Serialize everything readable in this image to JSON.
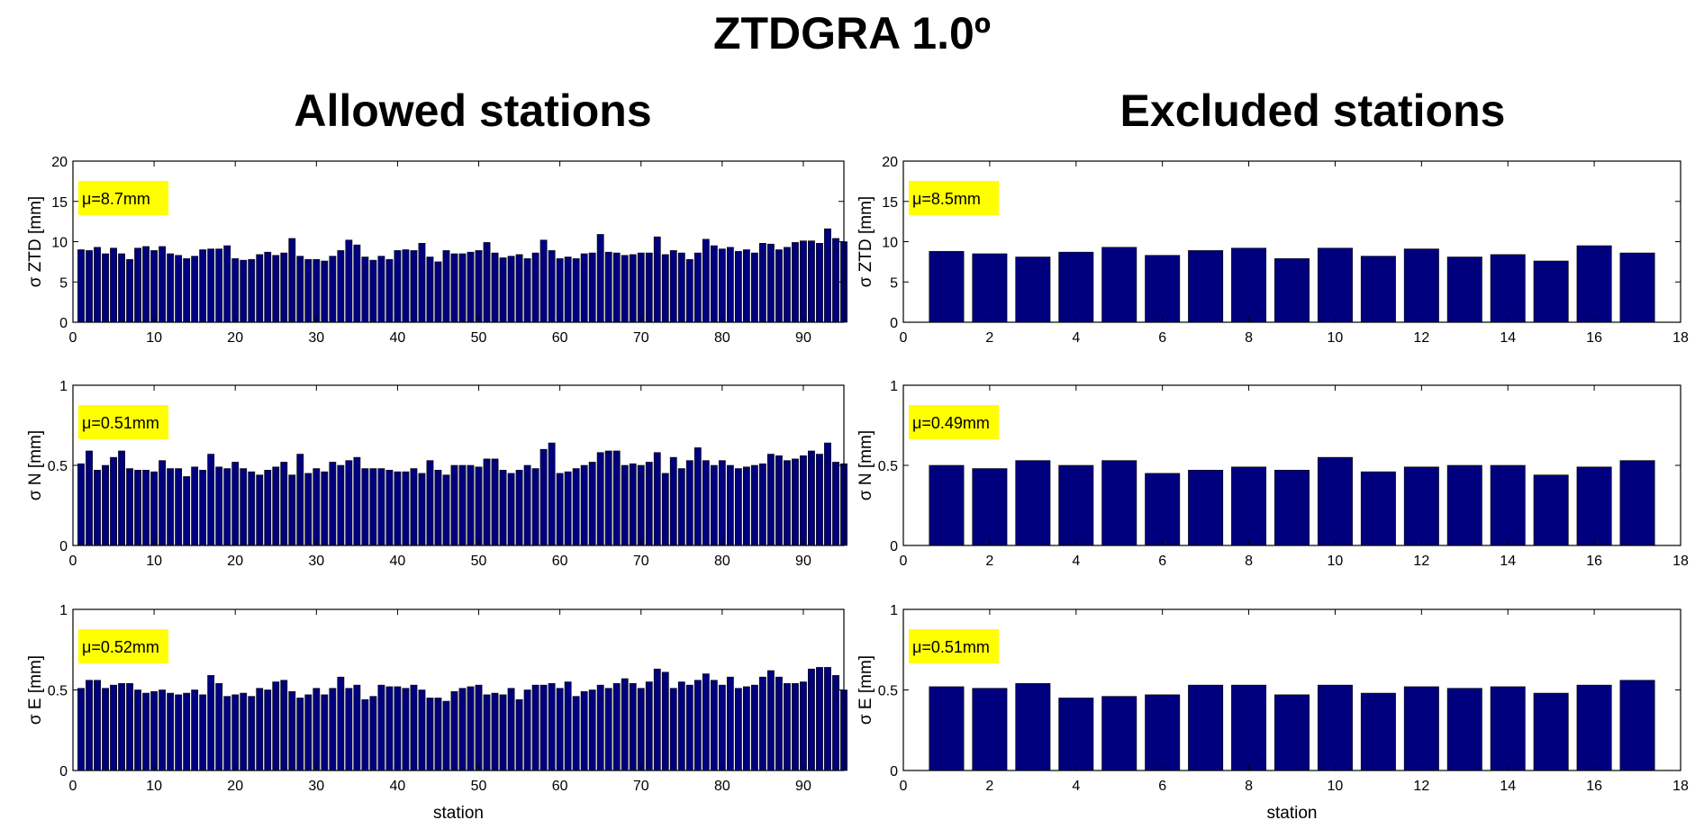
{
  "figure_title": "ZTDGRA 1.0º",
  "column_titles": {
    "left": "Allowed stations",
    "right": "Excluded stations"
  },
  "colors": {
    "bar": "#00007e",
    "bar_edge": "#000000",
    "mean_box": "#ffff00"
  },
  "chart_data": [
    {
      "id": "allowed-ztd",
      "type": "bar",
      "xlabel": "",
      "ylabel": "σ ZTD [mm]",
      "mean_label": "μ=8.7mm",
      "xlim": [
        0,
        95
      ],
      "ylim": [
        0,
        20
      ],
      "xticks": [
        0,
        10,
        20,
        30,
        40,
        50,
        60,
        70,
        80,
        90
      ],
      "yticks": [
        0,
        5,
        10,
        15,
        20
      ],
      "x": [
        1,
        2,
        3,
        4,
        5,
        6,
        7,
        8,
        9,
        10,
        11,
        12,
        13,
        14,
        15,
        16,
        17,
        18,
        19,
        20,
        21,
        22,
        23,
        24,
        25,
        26,
        27,
        28,
        29,
        30,
        31,
        32,
        33,
        34,
        35,
        36,
        37,
        38,
        39,
        40,
        41,
        42,
        43,
        44,
        45,
        46,
        47,
        48,
        49,
        50,
        51,
        52,
        53,
        54,
        55,
        56,
        57,
        58,
        59,
        60,
        61,
        62,
        63,
        64,
        65,
        66,
        67,
        68,
        69,
        70,
        71,
        72,
        73,
        74,
        75,
        76,
        77,
        78,
        79,
        80,
        81,
        82,
        83,
        84,
        85,
        86,
        87,
        88,
        89,
        90,
        91,
        92,
        93,
        94,
        95
      ],
      "values": [
        9.0,
        8.9,
        9.3,
        8.5,
        9.2,
        8.5,
        7.8,
        9.2,
        9.4,
        8.9,
        9.4,
        8.5,
        8.3,
        7.9,
        8.2,
        9.0,
        9.1,
        9.1,
        9.5,
        7.9,
        7.7,
        7.8,
        8.4,
        8.7,
        8.3,
        8.6,
        10.4,
        8.2,
        7.8,
        7.8,
        7.6,
        8.2,
        8.9,
        10.2,
        9.6,
        8.1,
        7.7,
        8.2,
        7.8,
        8.9,
        9.0,
        8.9,
        9.8,
        8.1,
        7.5,
        8.9,
        8.5,
        8.5,
        8.7,
        8.9,
        9.9,
        8.6,
        8.0,
        8.2,
        8.4,
        7.9,
        8.6,
        10.2,
        8.9,
        7.9,
        8.1,
        7.9,
        8.5,
        8.6,
        10.9,
        8.7,
        8.6,
        8.3,
        8.4,
        8.6,
        8.6,
        10.6,
        8.4,
        8.9,
        8.6,
        7.8,
        8.6,
        10.3,
        9.5,
        9.1,
        9.3,
        8.8,
        9.0,
        8.6,
        9.8,
        9.7,
        9.0,
        9.3,
        9.9,
        10.1,
        10.1,
        9.8,
        11.6,
        10.4,
        10.0
      ]
    },
    {
      "id": "allowed-n",
      "type": "bar",
      "xlabel": "",
      "ylabel": "σ N [mm]",
      "mean_label": "μ=0.51mm",
      "xlim": [
        0,
        95
      ],
      "ylim": [
        0,
        1
      ],
      "xticks": [
        0,
        10,
        20,
        30,
        40,
        50,
        60,
        70,
        80,
        90
      ],
      "yticks": [
        0,
        0.5,
        1
      ],
      "x": [
        1,
        2,
        3,
        4,
        5,
        6,
        7,
        8,
        9,
        10,
        11,
        12,
        13,
        14,
        15,
        16,
        17,
        18,
        19,
        20,
        21,
        22,
        23,
        24,
        25,
        26,
        27,
        28,
        29,
        30,
        31,
        32,
        33,
        34,
        35,
        36,
        37,
        38,
        39,
        40,
        41,
        42,
        43,
        44,
        45,
        46,
        47,
        48,
        49,
        50,
        51,
        52,
        53,
        54,
        55,
        56,
        57,
        58,
        59,
        60,
        61,
        62,
        63,
        64,
        65,
        66,
        67,
        68,
        69,
        70,
        71,
        72,
        73,
        74,
        75,
        76,
        77,
        78,
        79,
        80,
        81,
        82,
        83,
        84,
        85,
        86,
        87,
        88,
        89,
        90,
        91,
        92,
        93,
        94,
        95
      ],
      "values": [
        0.51,
        0.59,
        0.47,
        0.5,
        0.55,
        0.59,
        0.48,
        0.47,
        0.47,
        0.46,
        0.53,
        0.48,
        0.48,
        0.43,
        0.49,
        0.47,
        0.57,
        0.49,
        0.48,
        0.52,
        0.48,
        0.46,
        0.44,
        0.47,
        0.49,
        0.52,
        0.44,
        0.57,
        0.45,
        0.48,
        0.46,
        0.52,
        0.5,
        0.53,
        0.55,
        0.48,
        0.48,
        0.48,
        0.47,
        0.46,
        0.46,
        0.48,
        0.45,
        0.53,
        0.47,
        0.44,
        0.5,
        0.5,
        0.5,
        0.49,
        0.54,
        0.54,
        0.47,
        0.45,
        0.47,
        0.5,
        0.48,
        0.6,
        0.64,
        0.45,
        0.46,
        0.48,
        0.5,
        0.52,
        0.58,
        0.59,
        0.59,
        0.5,
        0.51,
        0.5,
        0.52,
        0.58,
        0.45,
        0.55,
        0.48,
        0.53,
        0.61,
        0.53,
        0.5,
        0.53,
        0.5,
        0.48,
        0.49,
        0.5,
        0.51,
        0.57,
        0.56,
        0.53,
        0.54,
        0.56,
        0.59,
        0.57,
        0.64,
        0.52,
        0.51
      ]
    },
    {
      "id": "allowed-e",
      "type": "bar",
      "xlabel": "station",
      "ylabel": "σ E [mm]",
      "mean_label": "μ=0.52mm",
      "xlim": [
        0,
        95
      ],
      "ylim": [
        0,
        1
      ],
      "xticks": [
        0,
        10,
        20,
        30,
        40,
        50,
        60,
        70,
        80,
        90
      ],
      "yticks": [
        0,
        0.5,
        1
      ],
      "x": [
        1,
        2,
        3,
        4,
        5,
        6,
        7,
        8,
        9,
        10,
        11,
        12,
        13,
        14,
        15,
        16,
        17,
        18,
        19,
        20,
        21,
        22,
        23,
        24,
        25,
        26,
        27,
        28,
        29,
        30,
        31,
        32,
        33,
        34,
        35,
        36,
        37,
        38,
        39,
        40,
        41,
        42,
        43,
        44,
        45,
        46,
        47,
        48,
        49,
        50,
        51,
        52,
        53,
        54,
        55,
        56,
        57,
        58,
        59,
        60,
        61,
        62,
        63,
        64,
        65,
        66,
        67,
        68,
        69,
        70,
        71,
        72,
        73,
        74,
        75,
        76,
        77,
        78,
        79,
        80,
        81,
        82,
        83,
        84,
        85,
        86,
        87,
        88,
        89,
        90,
        91,
        92,
        93,
        94,
        95
      ],
      "values": [
        0.51,
        0.56,
        0.56,
        0.51,
        0.53,
        0.54,
        0.54,
        0.5,
        0.48,
        0.49,
        0.5,
        0.48,
        0.47,
        0.48,
        0.5,
        0.47,
        0.59,
        0.54,
        0.46,
        0.47,
        0.48,
        0.46,
        0.51,
        0.5,
        0.55,
        0.56,
        0.49,
        0.45,
        0.47,
        0.51,
        0.47,
        0.51,
        0.58,
        0.51,
        0.53,
        0.44,
        0.46,
        0.53,
        0.52,
        0.52,
        0.51,
        0.53,
        0.5,
        0.45,
        0.45,
        0.43,
        0.49,
        0.51,
        0.52,
        0.53,
        0.47,
        0.48,
        0.47,
        0.51,
        0.44,
        0.5,
        0.53,
        0.53,
        0.54,
        0.51,
        0.55,
        0.46,
        0.49,
        0.5,
        0.53,
        0.51,
        0.54,
        0.57,
        0.54,
        0.51,
        0.55,
        0.63,
        0.61,
        0.51,
        0.55,
        0.53,
        0.56,
        0.6,
        0.56,
        0.53,
        0.58,
        0.51,
        0.52,
        0.53,
        0.58,
        0.62,
        0.58,
        0.54,
        0.54,
        0.55,
        0.63,
        0.64,
        0.64,
        0.59,
        0.5
      ]
    },
    {
      "id": "excluded-ztd",
      "type": "bar",
      "xlabel": "",
      "ylabel": "σ ZTD [mm]",
      "mean_label": "μ=8.5mm",
      "xlim": [
        0,
        18
      ],
      "ylim": [
        0,
        20
      ],
      "xticks": [
        0,
        2,
        4,
        6,
        8,
        10,
        12,
        14,
        16,
        18
      ],
      "yticks": [
        0,
        5,
        10,
        15,
        20
      ],
      "x": [
        1,
        2,
        3,
        4,
        5,
        6,
        7,
        8,
        9,
        10,
        11,
        12,
        13,
        14,
        15,
        16,
        17
      ],
      "values": [
        8.8,
        8.5,
        8.1,
        8.7,
        9.3,
        8.3,
        8.9,
        9.2,
        7.9,
        9.2,
        8.2,
        9.1,
        8.1,
        8.4,
        7.6,
        9.5,
        8.6
      ]
    },
    {
      "id": "excluded-n",
      "type": "bar",
      "xlabel": "",
      "ylabel": "σ N [mm]",
      "mean_label": "μ=0.49mm",
      "xlim": [
        0,
        18
      ],
      "ylim": [
        0,
        1
      ],
      "xticks": [
        0,
        2,
        4,
        6,
        8,
        10,
        12,
        14,
        16,
        18
      ],
      "yticks": [
        0,
        0.5,
        1
      ],
      "x": [
        1,
        2,
        3,
        4,
        5,
        6,
        7,
        8,
        9,
        10,
        11,
        12,
        13,
        14,
        15,
        16,
        17
      ],
      "values": [
        0.5,
        0.48,
        0.53,
        0.5,
        0.53,
        0.45,
        0.47,
        0.49,
        0.47,
        0.55,
        0.46,
        0.49,
        0.5,
        0.5,
        0.44,
        0.49,
        0.53
      ]
    },
    {
      "id": "excluded-e",
      "type": "bar",
      "xlabel": "station",
      "ylabel": "σ E [mm]",
      "mean_label": "μ=0.51mm",
      "xlim": [
        0,
        18
      ],
      "ylim": [
        0,
        1
      ],
      "xticks": [
        0,
        2,
        4,
        6,
        8,
        10,
        12,
        14,
        16,
        18
      ],
      "yticks": [
        0,
        0.5,
        1
      ],
      "x": [
        1,
        2,
        3,
        4,
        5,
        6,
        7,
        8,
        9,
        10,
        11,
        12,
        13,
        14,
        15,
        16,
        17
      ],
      "values": [
        0.52,
        0.51,
        0.54,
        0.45,
        0.46,
        0.47,
        0.53,
        0.53,
        0.47,
        0.53,
        0.48,
        0.52,
        0.51,
        0.52,
        0.48,
        0.53,
        0.56
      ]
    }
  ]
}
